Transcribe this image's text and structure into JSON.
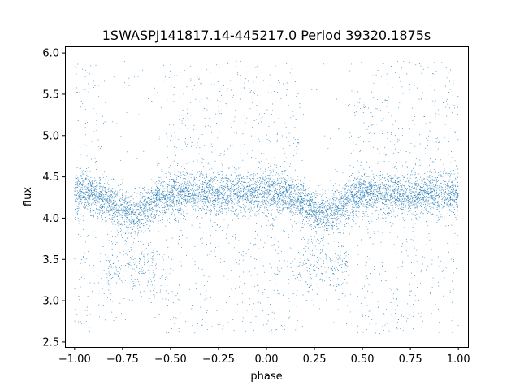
{
  "chart_data": {
    "type": "scatter",
    "title": "1SWASPJ141817.14-445217.0 Period 39320.1875s",
    "xlabel": "phase",
    "ylabel": "flux",
    "xlim": [
      -1.05,
      1.05
    ],
    "ylim": [
      2.44,
      6.08
    ],
    "x_ticks": [
      -1.0,
      -0.75,
      -0.5,
      -0.25,
      0.0,
      0.25,
      0.5,
      0.75,
      1.0
    ],
    "x_tick_labels": [
      "−1.00",
      "−0.75",
      "−0.50",
      "−0.25",
      "0.00",
      "0.25",
      "0.50",
      "0.75",
      "1.00"
    ],
    "y_ticks": [
      2.5,
      3.0,
      3.5,
      4.0,
      4.5,
      5.0,
      5.5,
      6.0
    ],
    "y_tick_labels": [
      "2.5",
      "3.0",
      "3.5",
      "4.0",
      "4.5",
      "5.0",
      "5.5",
      "6.0"
    ],
    "grid": false,
    "legend": "none",
    "series": [
      {
        "color": "#1f77b4",
        "marker_size": "tiny",
        "x_range": [
          -1.0,
          1.0
        ],
        "baseline_flux": 4.3,
        "band_flux_range": [
          3.95,
          4.6
        ],
        "dips": [
          {
            "phase_center": -0.7,
            "phase_width": 0.12,
            "min_flux": 3.3
          },
          {
            "phase_center": 0.3,
            "phase_width": 0.12,
            "min_flux": 3.3
          }
        ],
        "outlier_flux_range": [
          2.6,
          5.9
        ]
      }
    ]
  }
}
